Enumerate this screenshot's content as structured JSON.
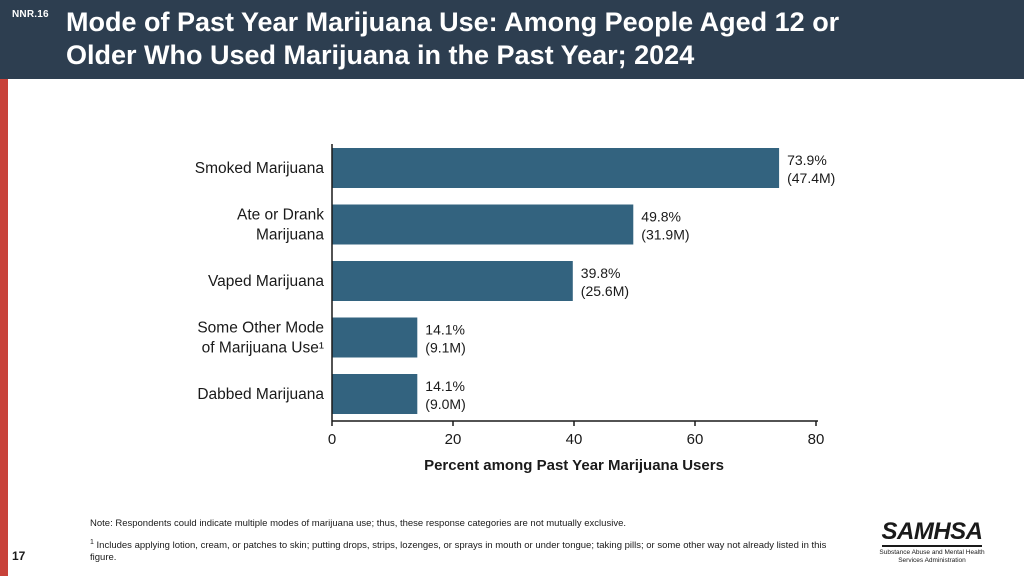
{
  "slide": {
    "code": "NNR.16",
    "title_lines": [
      "Mode of Past Year Marijuana Use: Among People Aged 12 or",
      "Older Who Used Marijuana in the Past Year; 2024"
    ],
    "page_number": "17"
  },
  "notes": {
    "note": "Note: Respondents could indicate multiple modes of marijuana use; thus, these response categories are not mutually exclusive.",
    "footnote_marker": "1",
    "footnote_text": "Includes applying lotion, cream, or patches to skin; putting drops, strips, lozenges, or sprays in mouth or under tongue; taking pills; or some other way not already listed in this figure."
  },
  "logo": {
    "wordmark": "SAMHSA",
    "subtitle_lines": [
      "Substance Abuse and Mental Health",
      "Services Administration"
    ]
  },
  "colors": {
    "header": "#2d3e50",
    "bar": "#33637f",
    "accent": "#c8423a"
  },
  "chart_data": {
    "type": "bar",
    "orientation": "horizontal",
    "title": "Mode of Past Year Marijuana Use: Among People Aged 12 or Older Who Used Marijuana in the Past Year; 2024",
    "categories": [
      [
        "Smoked Marijuana"
      ],
      [
        "Ate or Drank",
        "Marijuana"
      ],
      [
        "Vaped Marijuana"
      ],
      [
        "Some Other Mode",
        "of Marijuana Use¹"
      ],
      [
        "Dabbed Marijuana"
      ]
    ],
    "values": [
      73.9,
      49.8,
      39.8,
      14.1,
      14.1
    ],
    "value_labels": [
      "73.9%",
      "49.8%",
      "39.8%",
      "14.1%",
      "14.1%"
    ],
    "count_labels": [
      "(47.4M)",
      "(31.9M)",
      "(25.6M)",
      "(9.1M)",
      "(9.0M)"
    ],
    "xlabel": "Percent among Past Year Marijuana Users",
    "ylabel": "",
    "xlim": [
      0,
      80
    ],
    "xticks": [
      0,
      20,
      40,
      60,
      80
    ],
    "grid": false,
    "legend": "none"
  }
}
